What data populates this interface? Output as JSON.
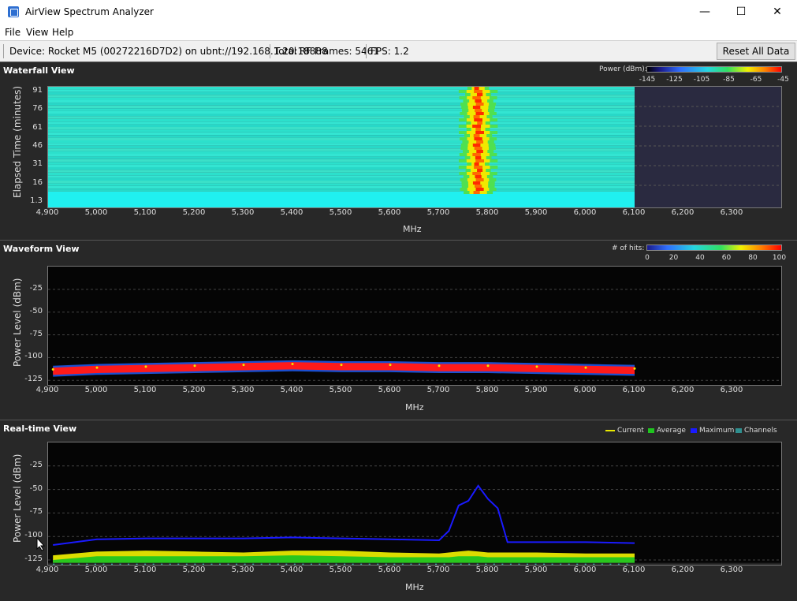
{
  "window": {
    "title": "AirView Spectrum Analyzer",
    "minimize": "—",
    "maximize": "☐",
    "close": "✕",
    "icon": "app-icon"
  },
  "menu": [
    "File",
    "View",
    "Help"
  ],
  "toolbar": {
    "device": "Device: Rocket M5 (00272216D7D2) on ubnt://192.168.1.20:18888",
    "frames": "Total RF Frames: 5461",
    "fps": "FPS: 1.2",
    "reset": "Reset All Data"
  },
  "waterfall": {
    "title": "Waterfall View",
    "legend_label": "Power (dBm):",
    "legend_ticks": [
      "-145",
      "-125",
      "-105",
      "-85",
      "-65",
      "-45"
    ],
    "ylabel": "Elapsed Time (minutes)",
    "yticks": [
      "91",
      "76",
      "61",
      "46",
      "31",
      "16",
      "1.3"
    ],
    "xlabel": "MHz"
  },
  "waveform": {
    "title": "Waveform View",
    "legend_label": "# of hits:",
    "legend_ticks": [
      "0",
      "20",
      "40",
      "60",
      "80",
      "100"
    ],
    "ylabel": "Power Level (dBm)",
    "yticks": [
      "-25",
      "-50",
      "-75",
      "-100",
      "-125"
    ],
    "xlabel": "MHz"
  },
  "realtime": {
    "title": "Real-time View",
    "legend": [
      {
        "label": "Current",
        "color": "#e8e800"
      },
      {
        "label": "Average",
        "color": "#1fc41f"
      },
      {
        "label": "Maximum",
        "color": "#1a1aff"
      },
      {
        "label": "Channels",
        "color": "#2f8f8f"
      }
    ],
    "ylabel": "Power Level (dBm)",
    "yticks": [
      "-25",
      "-50",
      "-75",
      "-100",
      "-125"
    ],
    "xlabel": "MHz"
  },
  "xticks": [
    "4,900",
    "5,000",
    "5,100",
    "5,200",
    "5,300",
    "5,400",
    "5,500",
    "5,600",
    "5,700",
    "5,800",
    "5,900",
    "6,000",
    "6,100",
    "6,200",
    "6,300"
  ],
  "chart_data": [
    {
      "type": "heatmap",
      "title": "Waterfall View",
      "xlabel": "MHz",
      "ylabel": "Elapsed Time (minutes)",
      "xlim": [
        4900,
        6400
      ],
      "ylim": [
        1.3,
        95
      ],
      "data_end_mhz": 6100,
      "hot_band_mhz": [
        5740,
        5820
      ]
    },
    {
      "type": "scatter",
      "title": "Waveform View",
      "xlabel": "MHz",
      "ylabel": "Power Level (dBm)",
      "xlim": [
        4900,
        6400
      ],
      "ylim": [
        -130,
        0
      ],
      "series": [
        {
          "name": "# of hits",
          "x": [
            4910,
            5000,
            5100,
            5200,
            5300,
            5400,
            5500,
            5600,
            5700,
            5800,
            5900,
            6000,
            6100
          ],
          "values": [
            -113,
            -111,
            -110,
            -109,
            -108,
            -107,
            -108,
            -108,
            -109,
            -109,
            -110,
            -111,
            -112
          ]
        }
      ]
    },
    {
      "type": "line",
      "title": "Real-time View",
      "xlabel": "MHz",
      "ylabel": "Power Level (dBm)",
      "xlim": [
        4900,
        6400
      ],
      "ylim": [
        -130,
        0
      ],
      "x": [
        4910,
        5000,
        5100,
        5200,
        5300,
        5400,
        5500,
        5600,
        5700,
        5720,
        5740,
        5760,
        5780,
        5800,
        5820,
        5840,
        5900,
        6000,
        6100
      ],
      "series": [
        {
          "name": "Maximum",
          "values": [
            -109,
            -103,
            -102,
            -102,
            -102,
            -101,
            -102,
            -103,
            -104,
            -94,
            -67,
            -62,
            -46,
            -60,
            -70,
            -106,
            -106,
            -106,
            -107
          ]
        },
        {
          "name": "Current",
          "values": [
            -120,
            -116,
            -115,
            -116,
            -117,
            -115,
            -115,
            -117,
            -118,
            -117,
            -116,
            -115,
            -116,
            -117,
            -117,
            -117,
            -117,
            -118,
            -118
          ]
        },
        {
          "name": "Average",
          "values": [
            -125,
            -121,
            -121,
            -121,
            -121,
            -120,
            -121,
            -122,
            -122,
            -122,
            -121,
            -121,
            -121,
            -122,
            -122,
            -122,
            -122,
            -122,
            -122
          ]
        }
      ]
    }
  ]
}
